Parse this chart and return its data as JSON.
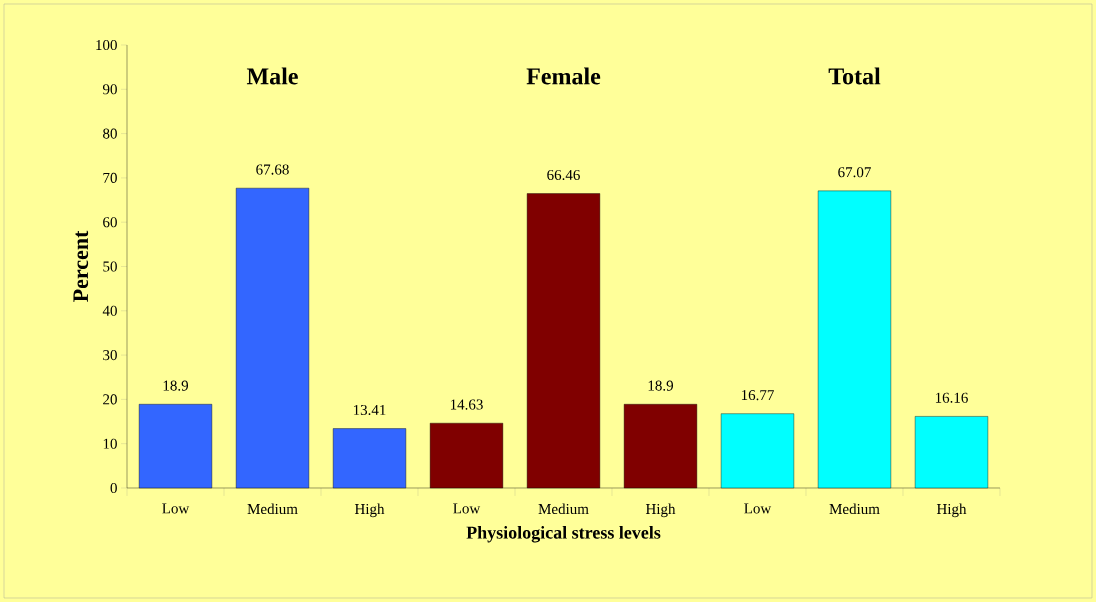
{
  "chart_data": {
    "type": "bar",
    "categories": [
      "Low",
      "Medium",
      "High",
      "Low",
      "Medium",
      "High",
      "Low",
      "Medium",
      "High"
    ],
    "values": [
      18.9,
      67.68,
      13.41,
      14.63,
      66.46,
      18.9,
      16.77,
      67.07,
      16.16
    ],
    "colors": [
      "#3366ff",
      "#3366ff",
      "#3366ff",
      "#800000",
      "#800000",
      "#800000",
      "#00ffff",
      "#00ffff",
      "#00ffff"
    ],
    "xlabel": "Physiological  stress levels",
    "ylabel": "Percent",
    "annotations": [
      "Male",
      "Female",
      "Total"
    ],
    "ylim": [
      0,
      100
    ],
    "yticks": [
      0,
      10,
      20,
      30,
      40,
      50,
      60,
      70,
      80,
      90,
      100
    ],
    "data_labels": true,
    "grid": false
  }
}
